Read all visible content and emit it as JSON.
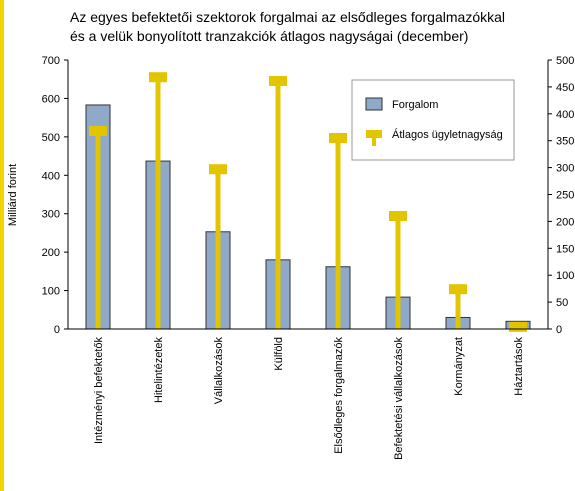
{
  "chart_data": {
    "type": "bar_lollipop",
    "title": [
      "Az egyes befektetői szektorok forgalmai az elsődleges forgalmazókkal",
      "és a velük bonyolított tranzakciók átlagos nagyságai (december)"
    ],
    "y_label": "Milliárd forint",
    "categories": [
      "Intézményi befektetők",
      "Hitelintézetek",
      "Vállalkozások",
      "Külföld",
      "Elsődleges forgalmazók",
      "Befektetési vállalkozások",
      "Kormányzat",
      "Háztartások"
    ],
    "series": [
      {
        "name": "Forgalom",
        "color": "#8fa9c9",
        "values": [
          583,
          437,
          253,
          180,
          162,
          83,
          30,
          20
        ]
      },
      {
        "name": "Átlagos ügyletnagyság",
        "color": "#e2c400",
        "axis": "y2",
        "values": [
          368,
          468,
          297,
          461,
          355,
          210,
          74,
          4
        ]
      }
    ],
    "ylim": [
      0,
      700
    ],
    "yticks": [
      0,
      100,
      200,
      300,
      400,
      500,
      600,
      700
    ],
    "y2lim": [
      0,
      500
    ],
    "y2ticks": [
      0,
      50,
      100,
      150,
      200,
      250,
      300,
      350,
      400,
      450,
      500
    ],
    "legend": "top-right"
  }
}
